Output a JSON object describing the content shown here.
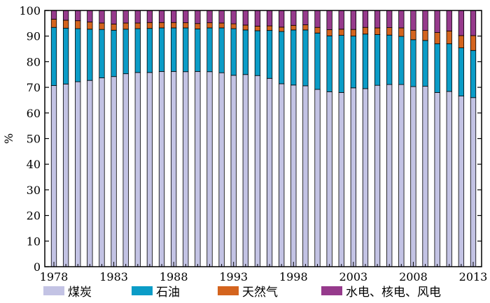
{
  "chart_data": {
    "type": "bar",
    "stacked": true,
    "ylabel": "%",
    "ylim": [
      0,
      100
    ],
    "yticks": [
      0,
      10,
      20,
      30,
      40,
      50,
      60,
      70,
      80,
      90,
      100
    ],
    "xtick_labels": [
      "1978",
      "1983",
      "1988",
      "1993",
      "1998",
      "2003",
      "2008",
      "2013"
    ],
    "categories": [
      "1978",
      "1979",
      "1980",
      "1981",
      "1982",
      "1983",
      "1984",
      "1985",
      "1986",
      "1987",
      "1988",
      "1989",
      "1990",
      "1991",
      "1992",
      "1993",
      "1994",
      "1995",
      "1996",
      "1997",
      "1998",
      "1999",
      "2000",
      "2001",
      "2002",
      "2003",
      "2004",
      "2005",
      "2006",
      "2007",
      "2008",
      "2009",
      "2010",
      "2011",
      "2012",
      "2013"
    ],
    "legend_position": "bottom",
    "series": [
      {
        "name": "煤炭",
        "color": "#c3c3e4",
        "values": [
          70.7,
          71.3,
          72.2,
          72.7,
          73.7,
          74.2,
          75.3,
          75.8,
          75.8,
          76.2,
          76.2,
          76.1,
          76.2,
          76.1,
          75.7,
          74.7,
          75.0,
          74.6,
          73.5,
          71.4,
          70.9,
          70.6,
          69.2,
          68.3,
          68.0,
          69.8,
          69.5,
          70.8,
          71.1,
          71.1,
          70.3,
          70.4,
          68.0,
          68.4,
          66.6,
          66.0
        ]
      },
      {
        "name": "石油",
        "color": "#0b9cc7",
        "values": [
          22.7,
          21.8,
          20.7,
          20.0,
          18.9,
          18.1,
          17.4,
          17.1,
          17.2,
          17.0,
          17.0,
          17.1,
          16.6,
          17.1,
          17.5,
          18.2,
          17.4,
          17.5,
          18.7,
          20.4,
          21.5,
          21.8,
          22.0,
          21.8,
          22.3,
          20.2,
          21.3,
          19.8,
          19.3,
          18.8,
          18.3,
          17.9,
          19.0,
          18.6,
          18.8,
          18.4
        ]
      },
      {
        "name": "天然气",
        "color": "#d4641e",
        "values": [
          3.2,
          3.1,
          3.1,
          2.8,
          2.5,
          2.4,
          2.4,
          2.2,
          2.3,
          2.1,
          2.1,
          2.0,
          2.1,
          2.0,
          1.9,
          1.9,
          1.9,
          1.8,
          1.8,
          1.7,
          1.8,
          2.0,
          2.2,
          2.4,
          2.4,
          2.6,
          2.6,
          2.6,
          2.9,
          3.3,
          3.7,
          3.9,
          4.4,
          5.0,
          4.8,
          5.8
        ]
      },
      {
        "name": "水电、核电、风电",
        "color": "#963a8c",
        "values": [
          3.4,
          3.8,
          4.0,
          4.5,
          4.9,
          5.3,
          4.9,
          4.9,
          4.7,
          4.7,
          4.7,
          4.8,
          5.1,
          4.8,
          4.9,
          5.2,
          5.7,
          6.1,
          6.0,
          6.5,
          5.8,
          5.6,
          6.6,
          7.5,
          7.3,
          7.4,
          6.6,
          6.8,
          6.7,
          6.8,
          7.7,
          7.8,
          8.6,
          8.0,
          9.8,
          9.8
        ]
      }
    ]
  }
}
